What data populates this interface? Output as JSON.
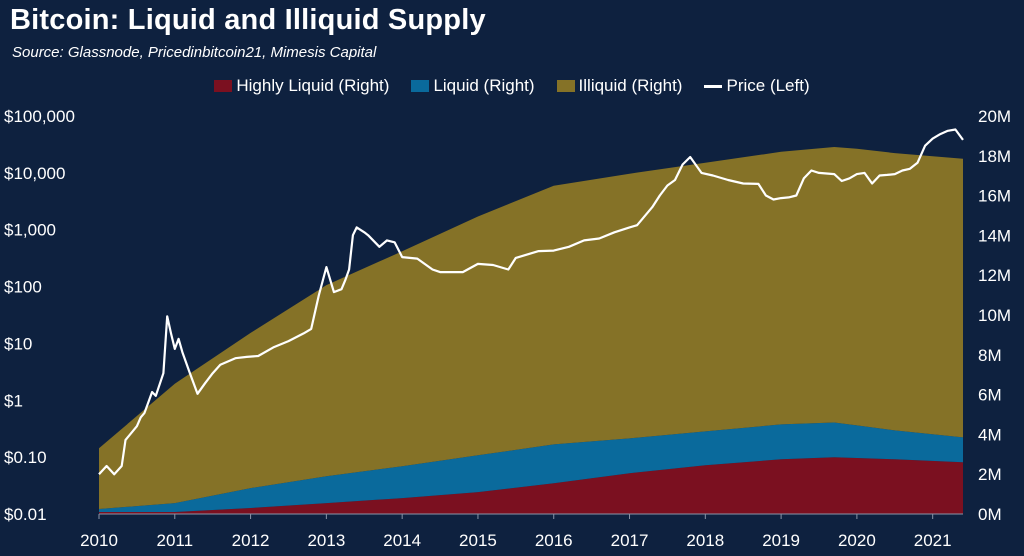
{
  "title": "Bitcoin: Liquid and Illiquid Supply",
  "subtitle": "Source: Glassnode, Pricedinbitcoin21, Mimesis Capital",
  "legend": [
    {
      "label": "Highly Liquid (Right)",
      "color": "#7b1020",
      "kind": "area"
    },
    {
      "label": "Liquid (Right)",
      "color": "#0a6a9c",
      "kind": "area"
    },
    {
      "label": "Illiquid (Right)",
      "color": "#857227",
      "kind": "area"
    },
    {
      "label": "Price (Left)",
      "color": "#ffffff",
      "kind": "line"
    }
  ],
  "chart_data": {
    "type": "area",
    "title": "Bitcoin: Liquid and Illiquid Supply",
    "x_ticks": [
      "2010",
      "2011",
      "2012",
      "2013",
      "2014",
      "2015",
      "2016",
      "2017",
      "2018",
      "2019",
      "2020",
      "2021"
    ],
    "xlim": [
      2010.0,
      2021.4
    ],
    "left_axis": {
      "label": "Price (Left)",
      "scale": "log",
      "ylim": [
        0.01,
        100000
      ],
      "ticks": [
        {
          "value": 0.01,
          "label": "$0.01"
        },
        {
          "value": 0.1,
          "label": "$0.10"
        },
        {
          "value": 1,
          "label": "$1"
        },
        {
          "value": 10,
          "label": "$10"
        },
        {
          "value": 100,
          "label": "$100"
        },
        {
          "value": 1000,
          "label": "$1,000"
        },
        {
          "value": 10000,
          "label": "$10,000"
        },
        {
          "value": 100000,
          "label": "$100,000"
        }
      ]
    },
    "right_axis": {
      "scale": "linear",
      "ylim": [
        0,
        20000000
      ],
      "ticks": [
        {
          "value": 0,
          "label": "0M"
        },
        {
          "value": 2000000,
          "label": "2M"
        },
        {
          "value": 4000000,
          "label": "4M"
        },
        {
          "value": 6000000,
          "label": "6M"
        },
        {
          "value": 8000000,
          "label": "8M"
        },
        {
          "value": 10000000,
          "label": "10M"
        },
        {
          "value": 12000000,
          "label": "12M"
        },
        {
          "value": 14000000,
          "label": "14M"
        },
        {
          "value": 16000000,
          "label": "16M"
        },
        {
          "value": 18000000,
          "label": "18M"
        },
        {
          "value": 20000000,
          "label": "20M"
        }
      ]
    },
    "series": [
      {
        "name": "Highly Liquid (Right)",
        "axis": "right",
        "kind": "stacked-area",
        "color": "#7b1020",
        "x": [
          2010.0,
          2011.0,
          2012.0,
          2013.0,
          2014.0,
          2015.0,
          2016.0,
          2017.0,
          2018.0,
          2019.0,
          2019.7,
          2020.5,
          2021.4
        ],
        "y": [
          100000,
          100000,
          300000,
          550000,
          800000,
          1100000,
          1550000,
          2050000,
          2450000,
          2750000,
          2850000,
          2750000,
          2600000
        ]
      },
      {
        "name": "Liquid (Right)",
        "axis": "right",
        "kind": "stacked-area",
        "color": "#0a6a9c",
        "x": [
          2010.0,
          2011.0,
          2012.0,
          2013.0,
          2014.0,
          2015.0,
          2016.0,
          2017.0,
          2018.0,
          2019.0,
          2019.7,
          2020.5,
          2021.4
        ],
        "y": [
          150000,
          450000,
          1000000,
          1350000,
          1600000,
          1850000,
          1950000,
          1750000,
          1700000,
          1750000,
          1750000,
          1450000,
          1250000
        ]
      },
      {
        "name": "Illiquid (Right)",
        "axis": "right",
        "kind": "stacked-area",
        "color": "#857227",
        "x": [
          2010.0,
          2011.0,
          2012.0,
          2013.0,
          2014.0,
          2015.0,
          2016.0,
          2017.0,
          2018.0,
          2019.0,
          2020.0,
          2021.4
        ],
        "y": [
          3050000,
          6000000,
          7800000,
          9600000,
          10800000,
          12000000,
          13000000,
          13300000,
          13500000,
          13700000,
          13900000,
          14000000
        ]
      },
      {
        "name": "Price (Left)",
        "axis": "left",
        "kind": "line",
        "color": "#ffffff",
        "x": [
          2010.0,
          2010.1,
          2010.2,
          2010.3,
          2010.35,
          2010.5,
          2010.55,
          2010.6,
          2010.7,
          2010.75,
          2010.85,
          2010.9,
          2010.95,
          2011.0,
          2011.05,
          2011.1,
          2011.2,
          2011.3,
          2011.4,
          2011.5,
          2011.6,
          2011.8,
          2011.95,
          2012.1,
          2012.3,
          2012.5,
          2012.7,
          2012.8,
          2012.9,
          2013.0,
          2013.1,
          2013.2,
          2013.25,
          2013.3,
          2013.35,
          2013.4,
          2013.5,
          2013.55,
          2013.7,
          2013.8,
          2013.9,
          2014.0,
          2014.2,
          2014.4,
          2014.5,
          2014.8,
          2015.0,
          2015.2,
          2015.4,
          2015.5,
          2015.8,
          2016.0,
          2016.2,
          2016.4,
          2016.6,
          2016.8,
          2017.0,
          2017.1,
          2017.3,
          2017.4,
          2017.5,
          2017.6,
          2017.7,
          2017.8,
          2017.95,
          2018.1,
          2018.3,
          2018.5,
          2018.7,
          2018.8,
          2018.9,
          2019.0,
          2019.1,
          2019.2,
          2019.3,
          2019.4,
          2019.5,
          2019.7,
          2019.8,
          2019.9,
          2020.0,
          2020.1,
          2020.2,
          2020.3,
          2020.4,
          2020.5,
          2020.6,
          2020.7,
          2020.8,
          2020.9,
          2021.0,
          2021.1,
          2021.2,
          2021.3,
          2021.4
        ],
        "y": [
          0.05,
          0.07,
          0.05,
          0.07,
          0.2,
          0.35,
          0.5,
          0.6,
          1.4,
          1.2,
          3,
          30,
          15,
          8,
          12,
          7,
          3,
          1.3,
          2,
          3,
          4.2,
          5.5,
          5.8,
          6,
          8.5,
          11,
          15,
          18,
          70,
          220,
          80,
          90,
          130,
          200,
          800,
          1100,
          900,
          800,
          500,
          650,
          600,
          330,
          310,
          200,
          180,
          180,
          250,
          240,
          200,
          320,
          420,
          430,
          500,
          650,
          700,
          900,
          1100,
          1200,
          2500,
          4000,
          6000,
          7500,
          14000,
          19000,
          10000,
          9000,
          7500,
          6500,
          6400,
          4000,
          3400,
          3600,
          3700,
          4000,
          8000,
          11000,
          10000,
          9500,
          7200,
          8000,
          9500,
          10000,
          6500,
          9000,
          9200,
          9500,
          11000,
          11800,
          15000,
          30000,
          40000,
          48000,
          55000,
          58000,
          38000
        ]
      }
    ]
  }
}
